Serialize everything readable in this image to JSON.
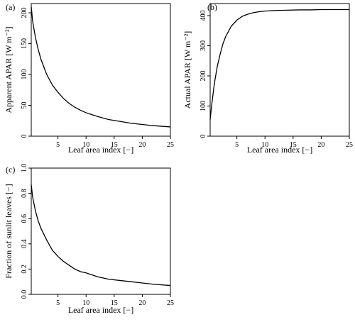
{
  "chart_data": [
    {
      "type": "line",
      "panel_label": "(a)",
      "xlabel": "Leaf area index [−]",
      "ylabel": "Apparent APAR [W m⁻²]",
      "xlim": [
        0.25,
        25
      ],
      "ylim": [
        0,
        215
      ],
      "xticks": [
        5,
        10,
        15,
        20,
        25
      ],
      "yticks": [
        0,
        50,
        100,
        150,
        200
      ],
      "series": [
        {
          "x": [
            0.25,
            0.5,
            1,
            1.5,
            2,
            3,
            4,
            5,
            6,
            7,
            8,
            9,
            10,
            12,
            14,
            16,
            18,
            20,
            22,
            25
          ],
          "values": [
            210,
            186,
            160,
            140,
            124,
            100,
            83,
            71,
            61,
            53,
            47,
            42,
            38,
            32,
            27,
            24,
            21,
            19,
            17,
            15
          ]
        }
      ]
    },
    {
      "type": "line",
      "panel_label": "(b)",
      "xlabel": "Leaf area index [−]",
      "ylabel": "Actual APAR [W m⁻²]",
      "xlim": [
        0.25,
        25
      ],
      "ylim": [
        0,
        440
      ],
      "xticks": [
        5,
        10,
        15,
        20,
        25
      ],
      "yticks": [
        0,
        100,
        200,
        300,
        400
      ],
      "series": [
        {
          "x": [
            0.25,
            0.5,
            1,
            1.5,
            2,
            2.5,
            3,
            4,
            5,
            6,
            7,
            8,
            9,
            10,
            12,
            14,
            16,
            18,
            20,
            22,
            25
          ],
          "values": [
            55,
            100,
            175,
            230,
            270,
            305,
            330,
            365,
            385,
            398,
            405,
            410,
            413,
            415,
            417,
            418,
            419,
            419,
            420,
            420,
            420
          ]
        }
      ]
    },
    {
      "type": "line",
      "panel_label": "(c)",
      "xlabel": "Leaf area index [−]",
      "ylabel": "Fraction of sunlit leaves [−]",
      "xlim": [
        0.25,
        25
      ],
      "ylim": [
        0,
        1.0
      ],
      "xticks": [
        5,
        10,
        15,
        20,
        25
      ],
      "yticks": [
        0.0,
        0.2,
        0.4,
        0.6,
        0.8,
        1.0
      ],
      "series": [
        {
          "x": [
            0.25,
            0.5,
            1,
            1.5,
            2,
            3,
            4,
            5,
            6,
            7,
            8,
            9,
            10,
            12,
            14,
            16,
            18,
            20,
            22,
            25
          ],
          "values": [
            0.87,
            0.77,
            0.66,
            0.58,
            0.52,
            0.43,
            0.35,
            0.3,
            0.26,
            0.23,
            0.2,
            0.18,
            0.17,
            0.14,
            0.12,
            0.11,
            0.1,
            0.09,
            0.08,
            0.07
          ]
        }
      ]
    }
  ]
}
